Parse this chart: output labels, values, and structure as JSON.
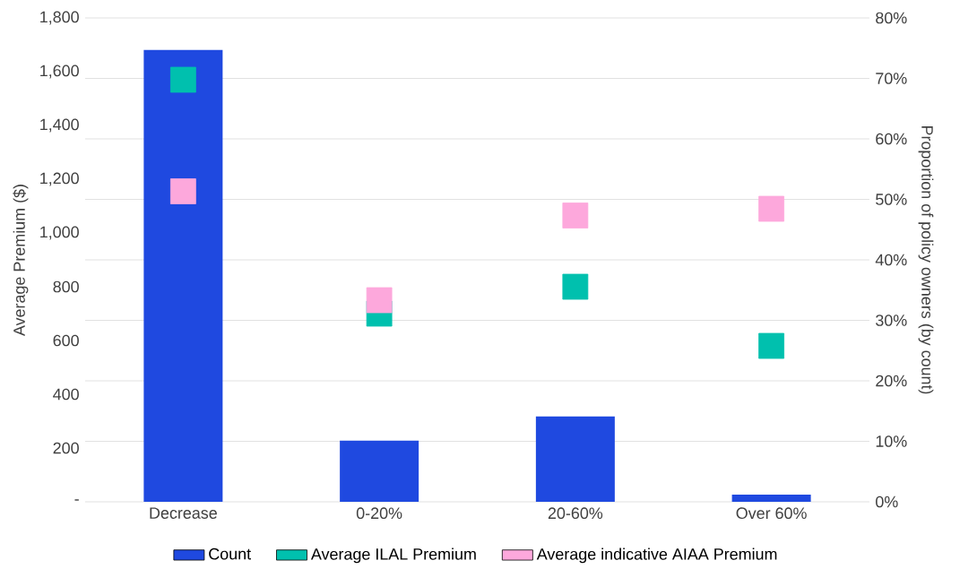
{
  "chart_data": {
    "type": "bar",
    "categories": [
      "Decrease",
      "0-20%",
      "20-60%",
      "Over 60%"
    ],
    "ylabel": "Average Premium ($)",
    "y2label": "Proportion of policy owners (by count)",
    "ylim": [
      0,
      1800
    ],
    "yticks": [
      {
        "value": 0,
        "label": "-"
      },
      200,
      400,
      600,
      800,
      {
        "value": 1000,
        "label": "1,000"
      },
      {
        "value": 1200,
        "label": "1,200"
      },
      {
        "value": 1400,
        "label": "1,400"
      },
      {
        "value": 1600,
        "label": "1,600"
      },
      {
        "value": 1800,
        "label": "1,800"
      }
    ],
    "y2lim": [
      0,
      80
    ],
    "y2ticks": [
      {
        "value": 0,
        "label": "0%"
      },
      {
        "value": 10,
        "label": "10%"
      },
      {
        "value": 20,
        "label": "20%"
      },
      {
        "value": 30,
        "label": "30%"
      },
      {
        "value": 40,
        "label": "40%"
      },
      {
        "value": 50,
        "label": "50%"
      },
      {
        "value": 60,
        "label": "60%"
      },
      {
        "value": 70,
        "label": "70%"
      },
      {
        "value": 80,
        "label": "80%"
      }
    ],
    "grid": "y",
    "legend": "bottom",
    "marker": "square",
    "series": [
      {
        "name": "Count",
        "axis": "y2",
        "color": "#1f49e0",
        "values": [
          74.7,
          10.1,
          14.1,
          1.2
        ]
      },
      {
        "name": "Average ILAL Premium",
        "type": "scatter",
        "color": "#00c0ae",
        "values": [
          1570,
          700,
          800,
          580
        ]
      },
      {
        "name": "Average indicative AIAA Premium",
        "type": "scatter",
        "color": "#fda8dc",
        "values": [
          1155,
          750,
          1065,
          1090
        ]
      }
    ]
  }
}
